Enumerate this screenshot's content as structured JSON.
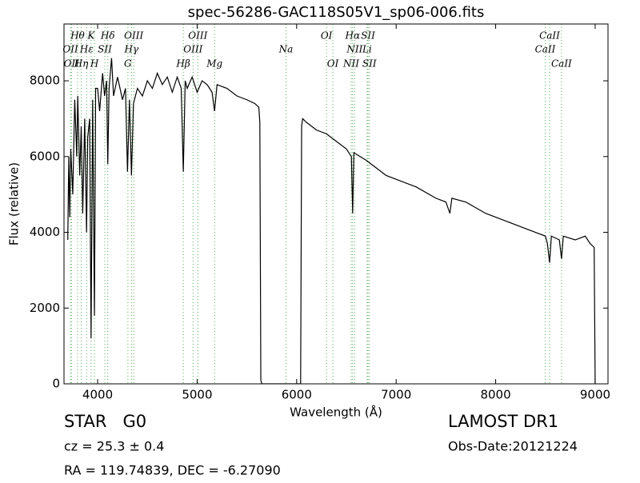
{
  "chart_data": {
    "type": "line",
    "title": "spec-56286-GAC118S05V1_sp06-006.fits",
    "x_label": "Wavelength (Å)",
    "y_label": "Flux (relative)",
    "xlim": [
      3662,
      9129
    ],
    "ylim": [
      0,
      9500
    ],
    "xticks": [
      4000,
      5000,
      6000,
      7000,
      8000,
      9000
    ],
    "yticks": [
      0,
      2000,
      4000,
      6000,
      8000
    ],
    "color": "#000000",
    "line_color": "#55aa55",
    "x": [
      3700,
      3710,
      3720,
      3730,
      3750,
      3770,
      3790,
      3800,
      3820,
      3835,
      3850,
      3870,
      3889,
      3900,
      3920,
      3934,
      3950,
      3968,
      3980,
      4000,
      4020,
      4050,
      4070,
      4090,
      4102,
      4115,
      4140,
      4160,
      4200,
      4250,
      4280,
      4300,
      4320,
      4340,
      4360,
      4400,
      4450,
      4500,
      4550,
      4600,
      4650,
      4700,
      4750,
      4800,
      4840,
      4861,
      4880,
      4900,
      4950,
      5000,
      5050,
      5100,
      5150,
      5175,
      5200,
      5300,
      5400,
      5500,
      5580,
      5620,
      5630,
      5640,
      5650,
      6040,
      6050,
      6060,
      6100,
      6200,
      6300,
      6400,
      6500,
      6550,
      6563,
      6575,
      6700,
      6800,
      6900,
      7000,
      7200,
      7400,
      7500,
      7540,
      7560,
      7700,
      7900,
      8000,
      8200,
      8400,
      8500,
      8520,
      8542,
      8560,
      8640,
      8662,
      8680,
      8800,
      8900,
      8950,
      8990,
      9000
    ],
    "values": [
      3800,
      6000,
      4400,
      6200,
      5000,
      7500,
      6000,
      7600,
      5500,
      6800,
      4500,
      7000,
      4000,
      6500,
      7000,
      1200,
      7500,
      1800,
      7800,
      7800,
      7200,
      8200,
      7600,
      8000,
      5800,
      7800,
      8600,
      7600,
      8100,
      7500,
      7800,
      5600,
      7500,
      5500,
      7400,
      7800,
      7600,
      8000,
      7800,
      8200,
      7900,
      8100,
      7700,
      8100,
      7800,
      5600,
      8000,
      7800,
      8100,
      7700,
      8000,
      7900,
      7700,
      7200,
      7900,
      7800,
      7600,
      7500,
      7400,
      7300,
      6900,
      100,
      0,
      0,
      6800,
      7000,
      6900,
      6700,
      6600,
      6400,
      6200,
      6000,
      4500,
      6100,
      5900,
      5700,
      5500,
      5400,
      5200,
      4900,
      4800,
      4500,
      4900,
      4800,
      4500,
      4400,
      4200,
      4000,
      3900,
      3700,
      3200,
      3900,
      3800,
      3300,
      3900,
      3800,
      3900,
      3700,
      3600,
      0
    ],
    "annotation_rows": [
      [
        {
          "text": "Hθ",
          "x": 3798
        },
        {
          "text": "K",
          "x": 3934
        },
        {
          "text": "Hδ",
          "x": 4102
        },
        {
          "text": "OIII",
          "x": 4363
        },
        {
          "text": "OIII",
          "x": 5007
        },
        {
          "text": "OI",
          "x": 6300
        },
        {
          "text": "Hα",
          "x": 6563
        },
        {
          "text": "SII",
          "x": 6717
        },
        {
          "text": "CaII",
          "x": 8542
        }
      ],
      [
        {
          "text": "OII",
          "x": 3727
        },
        {
          "text": "Hε",
          "x": 3889
        },
        {
          "text": "SII",
          "x": 4072
        },
        {
          "text": "Hγ",
          "x": 4340
        },
        {
          "text": "OIII",
          "x": 4959
        },
        {
          "text": "Na",
          "x": 5893
        },
        {
          "text": "NII",
          "x": 6583
        },
        {
          "text": "Li",
          "x": 6708
        },
        {
          "text": "CaII",
          "x": 8498
        }
      ],
      [
        {
          "text": "OII",
          "x": 3737
        },
        {
          "text": "Hη",
          "x": 3835
        },
        {
          "text": "H",
          "x": 3968
        },
        {
          "text": "G",
          "x": 4304
        },
        {
          "text": "Hβ",
          "x": 4861
        },
        {
          "text": "Mg",
          "x": 5175
        },
        {
          "text": "OI",
          "x": 6364
        },
        {
          "text": "NII",
          "x": 6548
        },
        {
          "text": "SII",
          "x": 6731
        },
        {
          "text": "CaII",
          "x": 8662
        }
      ]
    ],
    "object_class": "STAR   G0",
    "redshift": "cz = 25.3 ± 0.4",
    "coordinates": "RA = 119.74839, DEC = -6.27090",
    "survey": "LAMOST DR1",
    "obs_date": "Obs-Date:20121224"
  }
}
